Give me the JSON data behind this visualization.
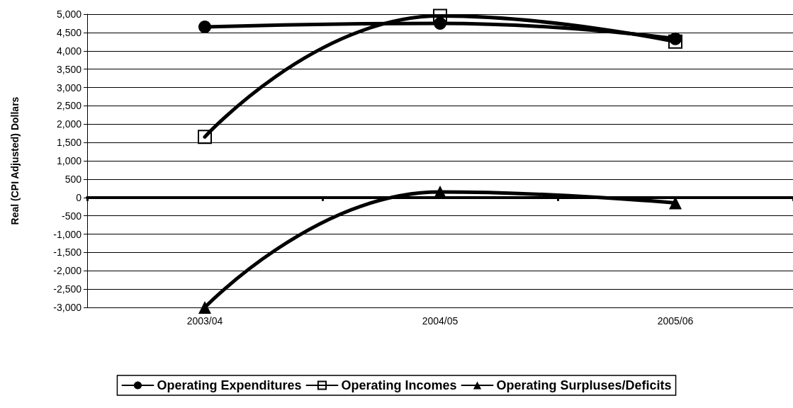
{
  "chart_data": {
    "type": "line",
    "ylabel": "Real (CPI Adjusted) Dollars",
    "categories": [
      "2003/04",
      "2004/05",
      "2005/06"
    ],
    "series": [
      {
        "name": "Operating Expenditures",
        "color": "#000000",
        "marker": "circle",
        "values": [
          4650,
          4750,
          4330
        ]
      },
      {
        "name": "Operating Incomes",
        "color": "#000000",
        "marker": "square",
        "values": [
          1650,
          4950,
          4250
        ]
      },
      {
        "name": "Operating Surpluses/Deficits",
        "color": "#000000",
        "marker": "triangle",
        "values": [
          -3000,
          150,
          -150
        ]
      }
    ],
    "ylim": [
      -3000,
      5000
    ],
    "yticks": [
      {
        "value": -3000,
        "label": "-3,000"
      },
      {
        "value": -2500,
        "label": "-2,500"
      },
      {
        "value": -2000,
        "label": "-2,000"
      },
      {
        "value": -1500,
        "label": "-1,500"
      },
      {
        "value": -1000,
        "label": "-1,000"
      },
      -500,
      0,
      500,
      {
        "value": 1000,
        "label": "1,000"
      },
      {
        "value": 1500,
        "label": "1,500"
      },
      {
        "value": 2000,
        "label": "2,000"
      },
      {
        "value": 2500,
        "label": "2,500"
      },
      {
        "value": 3000,
        "label": "3,000"
      },
      {
        "value": 3500,
        "label": "3,500"
      },
      {
        "value": 4000,
        "label": "4,000"
      },
      {
        "value": 4500,
        "label": "4,500"
      },
      {
        "value": 5000,
        "label": "5,000"
      }
    ],
    "grid": "y",
    "legend": "bottom",
    "line_style": "solid"
  }
}
